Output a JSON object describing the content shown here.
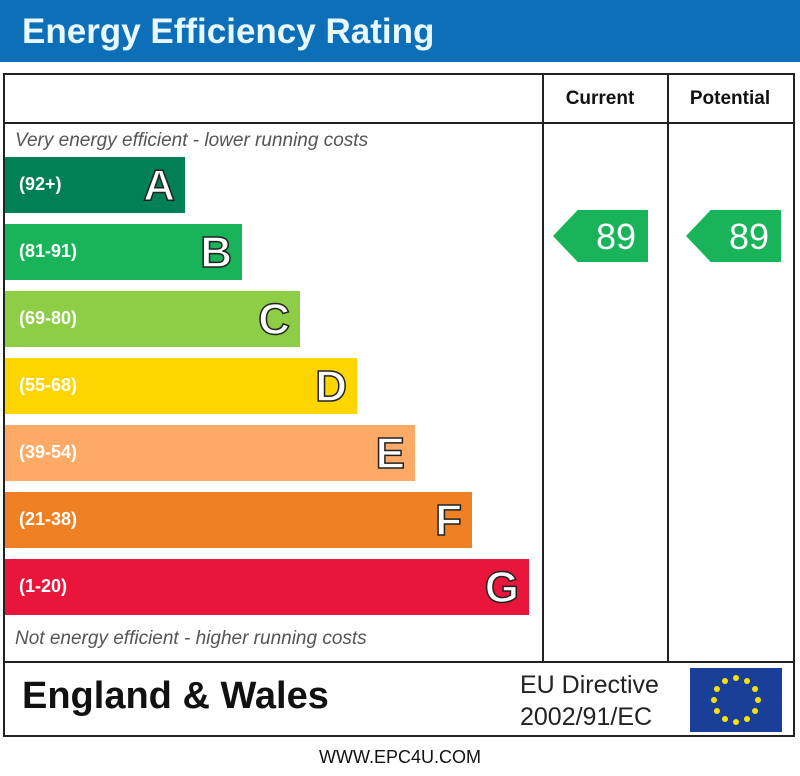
{
  "header": {
    "title": "Energy Efficiency Rating"
  },
  "columns": {
    "current": "Current",
    "potential": "Potential"
  },
  "notes": {
    "top": "Very energy efficient - lower running costs",
    "bottom": "Not energy efficient - higher running costs"
  },
  "chart_data": {
    "type": "bar",
    "categories": [
      "A",
      "B",
      "C",
      "D",
      "E",
      "F",
      "G"
    ],
    "ranges": [
      "(92+)",
      "(81-91)",
      "(69-80)",
      "(55-68)",
      "(39-54)",
      "(21-38)",
      "(1-20)"
    ],
    "colors": [
      "#008054",
      "#19b459",
      "#8dce46",
      "#ffd500",
      "#fcaa65",
      "#ef8023",
      "#e9153b"
    ],
    "current": {
      "value": "89",
      "band": "B",
      "color": "#19b459"
    },
    "potential": {
      "value": "89",
      "band": "B",
      "color": "#19b459"
    }
  },
  "footer": {
    "region": "England & Wales",
    "directive_line1": "EU Directive",
    "directive_line2": "2002/91/EC",
    "url": "WWW.EPC4U.COM"
  }
}
